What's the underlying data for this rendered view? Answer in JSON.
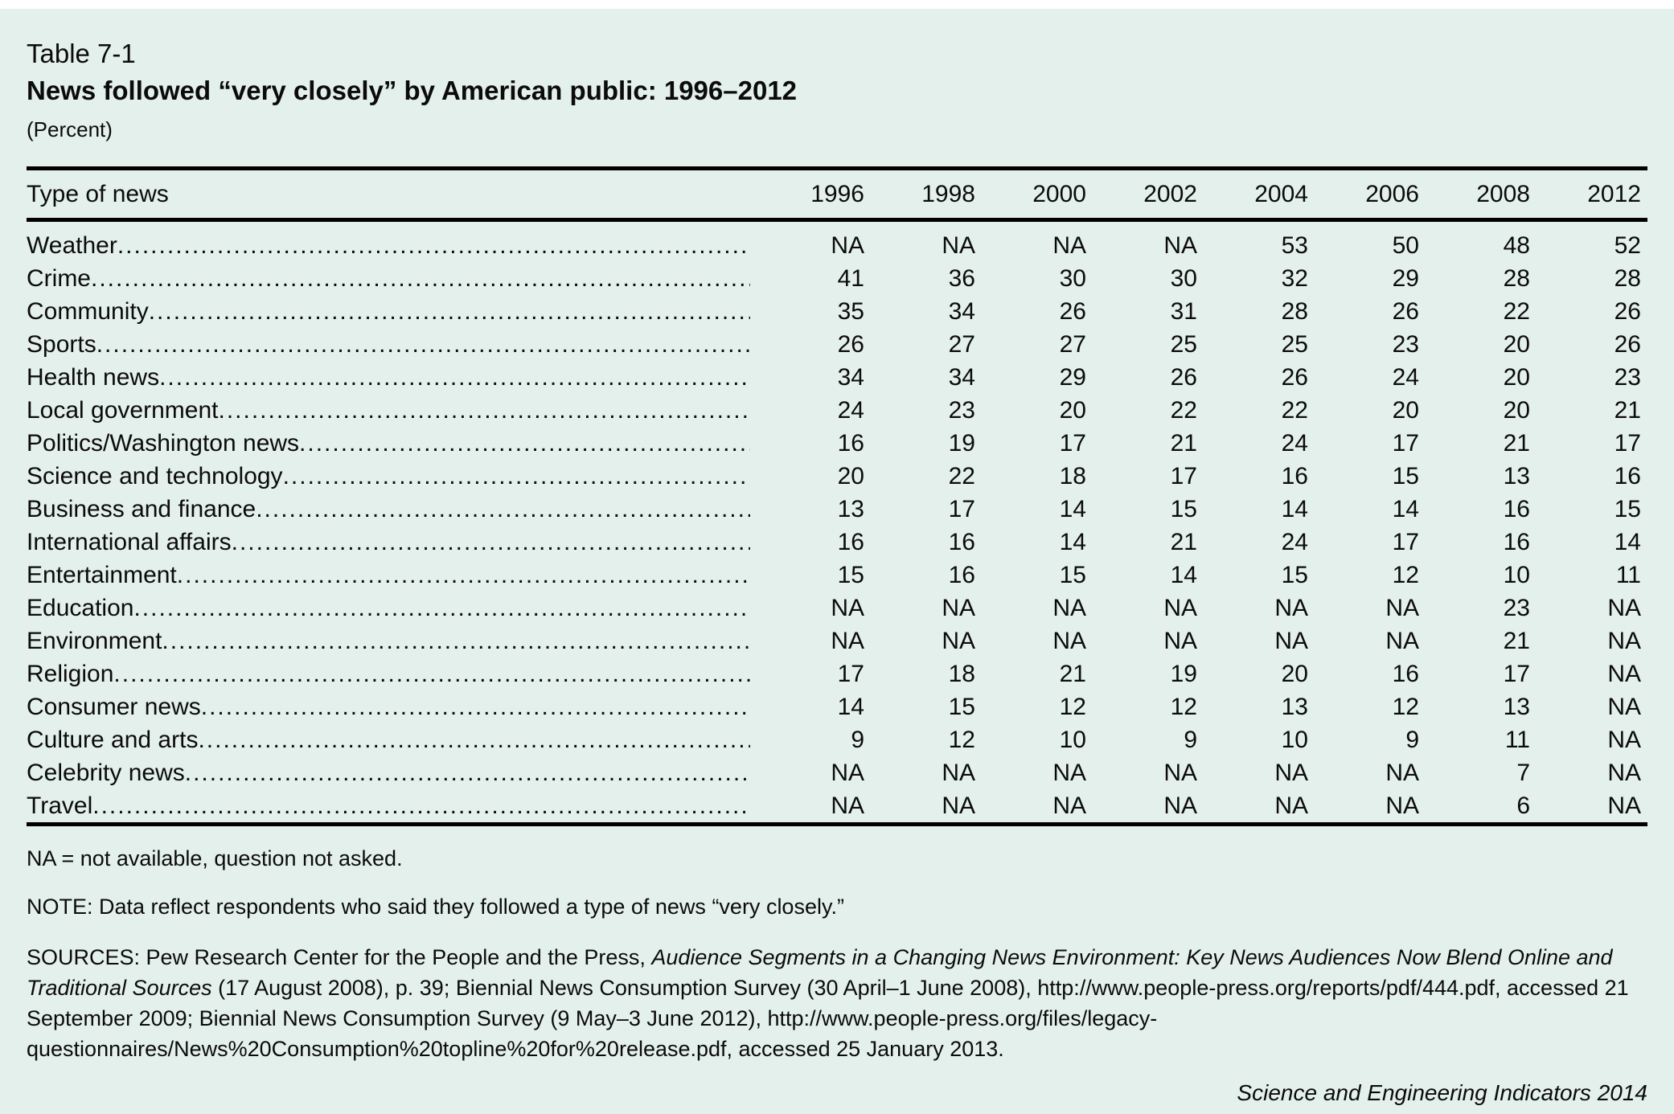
{
  "header": {
    "table_number": "Table 7-1",
    "title": "News followed “very closely” by American public: 1996–2012",
    "unit": "(Percent)"
  },
  "table": {
    "type_column_header": "Type of news",
    "years": [
      "1996",
      "1998",
      "2000",
      "2002",
      "2004",
      "2006",
      "2008",
      "2012"
    ],
    "rows": [
      {
        "label": "Weather",
        "values": [
          "NA",
          "NA",
          "NA",
          "NA",
          "53",
          "50",
          "48",
          "52"
        ]
      },
      {
        "label": "Crime",
        "values": [
          "41",
          "36",
          "30",
          "30",
          "32",
          "29",
          "28",
          "28"
        ]
      },
      {
        "label": "Community",
        "values": [
          "35",
          "34",
          "26",
          "31",
          "28",
          "26",
          "22",
          "26"
        ]
      },
      {
        "label": "Sports",
        "values": [
          "26",
          "27",
          "27",
          "25",
          "25",
          "23",
          "20",
          "26"
        ]
      },
      {
        "label": "Health news",
        "values": [
          "34",
          "34",
          "29",
          "26",
          "26",
          "24",
          "20",
          "23"
        ]
      },
      {
        "label": "Local government",
        "values": [
          "24",
          "23",
          "20",
          "22",
          "22",
          "20",
          "20",
          "21"
        ]
      },
      {
        "label": "Politics/Washington news",
        "values": [
          "16",
          "19",
          "17",
          "21",
          "24",
          "17",
          "21",
          "17"
        ]
      },
      {
        "label": "Science and technology",
        "values": [
          "20",
          "22",
          "18",
          "17",
          "16",
          "15",
          "13",
          "16"
        ]
      },
      {
        "label": "Business and finance",
        "values": [
          "13",
          "17",
          "14",
          "15",
          "14",
          "14",
          "16",
          "15"
        ]
      },
      {
        "label": "International affairs",
        "values": [
          "16",
          "16",
          "14",
          "21",
          "24",
          "17",
          "16",
          "14"
        ]
      },
      {
        "label": "Entertainment",
        "values": [
          "15",
          "16",
          "15",
          "14",
          "15",
          "12",
          "10",
          "11"
        ]
      },
      {
        "label": "Education",
        "values": [
          "NA",
          "NA",
          "NA",
          "NA",
          "NA",
          "NA",
          "23",
          "NA"
        ]
      },
      {
        "label": "Environment",
        "values": [
          "NA",
          "NA",
          "NA",
          "NA",
          "NA",
          "NA",
          "21",
          "NA"
        ]
      },
      {
        "label": "Religion",
        "values": [
          "17",
          "18",
          "21",
          "19",
          "20",
          "16",
          "17",
          "NA"
        ]
      },
      {
        "label": "Consumer news",
        "values": [
          "14",
          "15",
          "12",
          "12",
          "13",
          "12",
          "13",
          "NA"
        ]
      },
      {
        "label": "Culture and arts",
        "values": [
          "9",
          "12",
          "10",
          "9",
          "10",
          "9",
          "11",
          "NA"
        ]
      },
      {
        "label": "Celebrity news",
        "values": [
          "NA",
          "NA",
          "NA",
          "NA",
          "NA",
          "NA",
          "7",
          "NA"
        ]
      },
      {
        "label": "Travel",
        "values": [
          "NA",
          "NA",
          "NA",
          "NA",
          "NA",
          "NA",
          "6",
          "NA"
        ]
      }
    ]
  },
  "footer": {
    "na_note": "NA = not available, question not asked.",
    "note": "NOTE: Data reflect respondents who said they followed a type of news “very closely.”",
    "sources_segments": [
      {
        "text": "SOURCES: Pew Research Center for the People and the Press, ",
        "italic": false
      },
      {
        "text": "Audience Segments in a Changing News Environment: Key News Audiences Now Blend Online and Traditional Sources",
        "italic": true
      },
      {
        "text": " (17 August 2008), p. 39; Biennial News Consumption Survey (30 April–1 June 2008), http://www.people-press.org/reports/pdf/444.pdf, accessed 21 September 2009; Biennial News Consumption Survey (9 May–3 June 2012), http://www.people-press.org/files/legacy-questionnaires/News%20Consumption%20topline%20for%20release.pdf, accessed 25 January 2013.",
        "italic": false
      }
    ],
    "credit": "Science and Engineering Indicators 2014"
  },
  "colors": {
    "background": "#e4f0eb",
    "top_strip": "#ffffff",
    "text": "#0b0b0b",
    "rule": "#000000"
  }
}
